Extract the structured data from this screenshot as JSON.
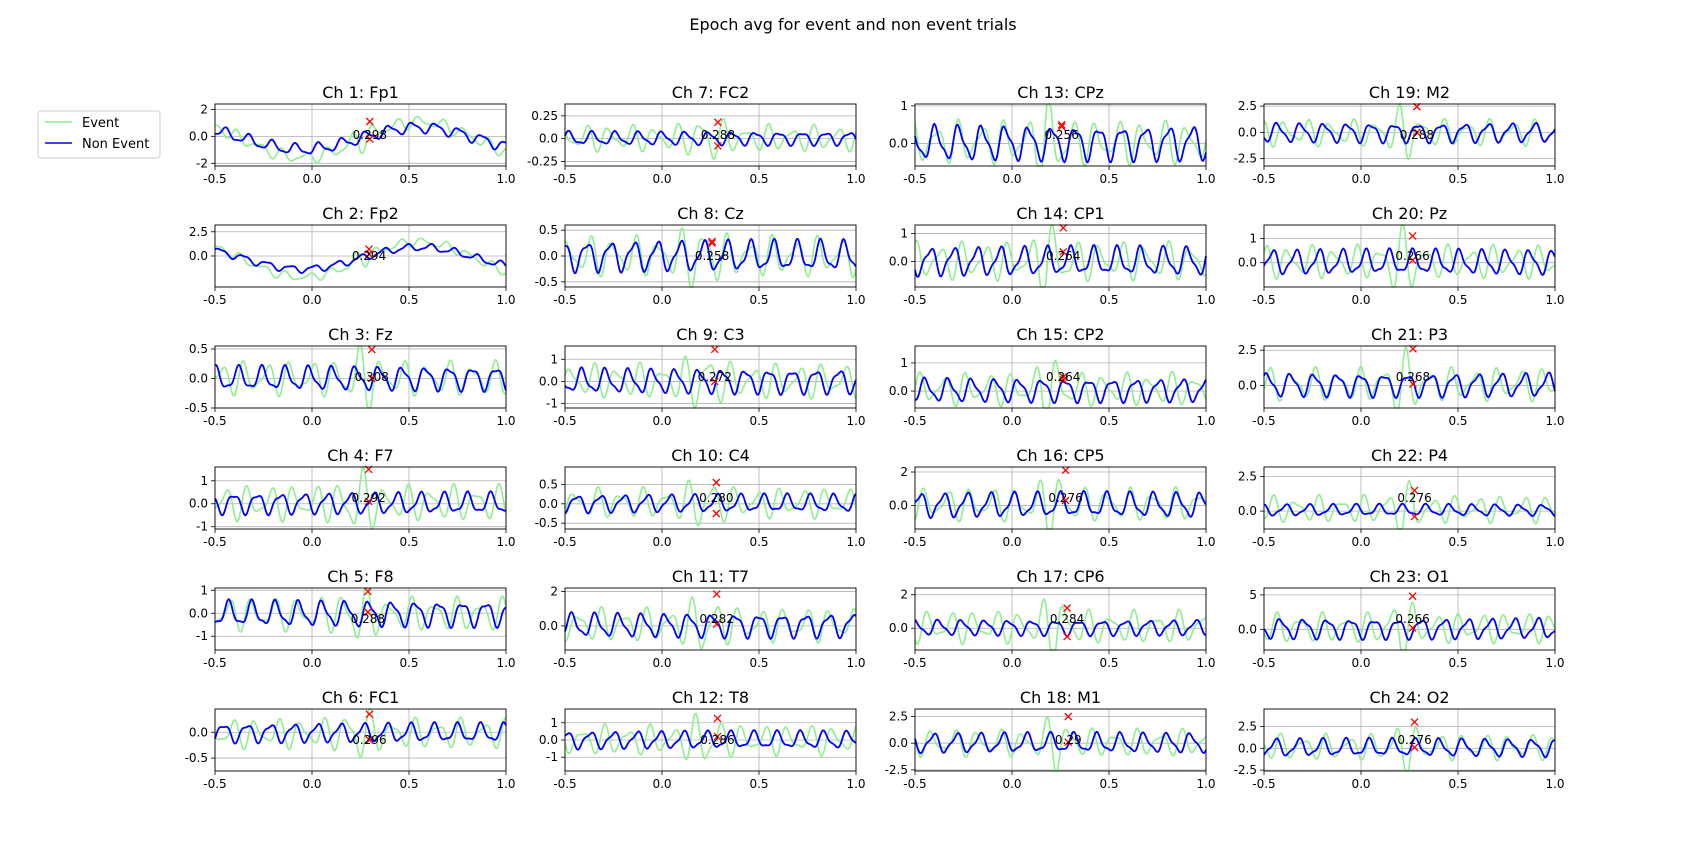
{
  "figure": {
    "suptitle": "Epoch avg for event and non event trials",
    "colors": {
      "event": "#90ee90",
      "non_event": "#0000ff",
      "marker": "#ff0000",
      "grid": "#b0b0b0"
    }
  },
  "chart_data": {
    "type": "line",
    "legend": {
      "placement": "left",
      "entries": [
        {
          "label": "Event",
          "color": "#90ee90"
        },
        {
          "label": "Non Event",
          "color": "#0000ff"
        }
      ]
    },
    "xlim": [
      -0.5,
      1.0
    ],
    "xticks": [
      -0.5,
      0.0,
      0.5,
      1.0
    ],
    "grid": true,
    "panels": [
      {
        "title": "Ch 1: Fp1",
        "ylim": [
          -2.2,
          2.4
        ],
        "yticks": [
          -2,
          0,
          2
        ],
        "event_amp": 0.5,
        "non_amp": 0.45,
        "peak_x": 0.298,
        "peak_label": "0.298",
        "marker_high": 1.1,
        "marker_low": -0.2,
        "seed": 1,
        "drift": 1
      },
      {
        "title": "Ch 2: Fp2",
        "ylim": [
          -3.2,
          3.2
        ],
        "yticks": [
          0.0,
          2.5
        ],
        "event_amp": 0.5,
        "non_amp": 0.4,
        "peak_x": 0.294,
        "peak_label": "0.294",
        "marker_high": 0.7,
        "marker_low": 0.2,
        "seed": 2,
        "drift": 1
      },
      {
        "title": "Ch 3: Fz",
        "ylim": [
          -0.5,
          0.55
        ],
        "yticks": [
          -0.5,
          0.0,
          0.5
        ],
        "event_amp": 0.3,
        "non_amp": 0.22,
        "peak_x": 0.308,
        "peak_label": "0.308",
        "marker_high": 0.49,
        "marker_low": 0.0,
        "seed": 3,
        "drift": 0
      },
      {
        "title": "Ch 4: F7",
        "ylim": [
          -1.1,
          1.6
        ],
        "yticks": [
          -1,
          0,
          1
        ],
        "event_amp": 0.8,
        "non_amp": 0.5,
        "peak_x": 0.292,
        "peak_label": "0.292",
        "marker_high": 1.5,
        "marker_low": 0.1,
        "seed": 4,
        "drift": 0
      },
      {
        "title": "Ch 5: F8",
        "ylim": [
          -1.6,
          1.1
        ],
        "yticks": [
          -1,
          0,
          1
        ],
        "event_amp": 0.75,
        "non_amp": 0.6,
        "peak_x": 0.288,
        "peak_label": "0.288",
        "marker_high": 0.95,
        "marker_low": 0.05,
        "seed": 5,
        "drift": 0
      },
      {
        "title": "Ch 6: FC1",
        "ylim": [
          -0.75,
          0.45
        ],
        "yticks": [
          -0.5,
          0.0
        ],
        "event_amp": 0.3,
        "non_amp": 0.2,
        "peak_x": 0.296,
        "peak_label": "0.296",
        "marker_high": 0.35,
        "marker_low": -0.15,
        "seed": 6,
        "drift": 0
      },
      {
        "title": "Ch 7: FC2",
        "ylim": [
          -0.3,
          0.38
        ],
        "yticks": [
          -0.25,
          0.0,
          0.25
        ],
        "event_amp": 0.15,
        "non_amp": 0.08,
        "peak_x": 0.288,
        "peak_label": "0.288",
        "marker_high": 0.18,
        "marker_low": -0.08,
        "seed": 7,
        "drift": 0
      },
      {
        "title": "Ch 8: Cz",
        "ylim": [
          -0.6,
          0.6
        ],
        "yticks": [
          -0.5,
          0.0,
          0.5
        ],
        "event_amp": 0.4,
        "non_amp": 0.32,
        "peak_x": 0.258,
        "peak_label": "0.258",
        "marker_high": 0.28,
        "marker_low": 0.25,
        "seed": 8,
        "drift": 0
      },
      {
        "title": "Ch 9: C3",
        "ylim": [
          -1.2,
          1.6
        ],
        "yticks": [
          -1,
          0,
          1
        ],
        "event_amp": 0.8,
        "non_amp": 0.6,
        "peak_x": 0.272,
        "peak_label": "0.272",
        "marker_high": 1.45,
        "marker_low": 0.0,
        "seed": 9,
        "drift": 0
      },
      {
        "title": "Ch 10: C4",
        "ylim": [
          -0.65,
          0.95
        ],
        "yticks": [
          -0.5,
          0.0,
          0.5
        ],
        "event_amp": 0.4,
        "non_amp": 0.25,
        "peak_x": 0.28,
        "peak_label": "0.280",
        "marker_high": 0.55,
        "marker_low": -0.25,
        "seed": 10,
        "drift": 0
      },
      {
        "title": "Ch 11: T7",
        "ylim": [
          -1.4,
          2.2
        ],
        "yticks": [
          0,
          2
        ],
        "event_amp": 1.0,
        "non_amp": 0.75,
        "peak_x": 0.282,
        "peak_label": "0.282",
        "marker_high": 1.85,
        "marker_low": 0.1,
        "seed": 11,
        "drift": 0
      },
      {
        "title": "Ch 12: T8",
        "ylim": [
          -1.8,
          1.8
        ],
        "yticks": [
          -1,
          0,
          1
        ],
        "event_amp": 0.9,
        "non_amp": 0.55,
        "peak_x": 0.286,
        "peak_label": "0.286",
        "marker_high": 1.25,
        "marker_low": 0.2,
        "seed": 12,
        "drift": 0
      },
      {
        "title": "Ch 13: CPz",
        "ylim": [
          -0.6,
          1.05
        ],
        "yticks": [
          0,
          1
        ],
        "event_amp": 0.6,
        "non_amp": 0.5,
        "peak_x": 0.256,
        "peak_label": "0.256",
        "marker_high": 0.5,
        "marker_low": 0.45,
        "seed": 13,
        "drift": 0
      },
      {
        "title": "Ch 14: CP1",
        "ylim": [
          -0.9,
          1.3
        ],
        "yticks": [
          0,
          1
        ],
        "event_amp": 0.7,
        "non_amp": 0.55,
        "peak_x": 0.264,
        "peak_label": "0.264",
        "marker_high": 1.2,
        "marker_low": 0.35,
        "seed": 14,
        "drift": 0
      },
      {
        "title": "Ch 15: CP2",
        "ylim": [
          -0.6,
          1.6
        ],
        "yticks": [
          0,
          1
        ],
        "event_amp": 0.6,
        "non_amp": 0.45,
        "peak_x": 0.264,
        "peak_label": "0.264",
        "marker_high": 0.5,
        "marker_low": 0.4,
        "seed": 15,
        "drift": 0
      },
      {
        "title": "Ch 16: CP5",
        "ylim": [
          -1.4,
          2.3
        ],
        "yticks": [
          0,
          2
        ],
        "event_amp": 1.0,
        "non_amp": 0.8,
        "peak_x": 0.276,
        "peak_label": "0.276",
        "marker_high": 2.1,
        "marker_low": 0.3,
        "seed": 16,
        "drift": 0
      },
      {
        "title": "Ch 17: CP6",
        "ylim": [
          -1.3,
          2.4
        ],
        "yticks": [
          0,
          2
        ],
        "event_amp": 1.0,
        "non_amp": 0.5,
        "peak_x": 0.284,
        "peak_label": "0.284",
        "marker_high": 1.2,
        "marker_low": -0.5,
        "seed": 17,
        "drift": 0
      },
      {
        "title": "Ch 18: M1",
        "ylim": [
          -2.6,
          3.2
        ],
        "yticks": [
          -2.5,
          0.0,
          2.5
        ],
        "event_amp": 1.3,
        "non_amp": 1.0,
        "peak_x": 0.29,
        "peak_label": "0.29",
        "marker_high": 2.5,
        "marker_low": 0.1,
        "seed": 18,
        "drift": 0
      },
      {
        "title": "Ch 19: M2",
        "ylim": [
          -3.2,
          2.7
        ],
        "yticks": [
          -2.5,
          0.0,
          2.5
        ],
        "event_amp": 1.3,
        "non_amp": 1.0,
        "peak_x": 0.288,
        "peak_label": "0.288",
        "marker_high": 2.45,
        "marker_low": 0.0,
        "seed": 19,
        "drift": 0
      },
      {
        "title": "Ch 20: Pz",
        "ylim": [
          -1.0,
          1.55
        ],
        "yticks": [
          0,
          1
        ],
        "event_amp": 0.7,
        "non_amp": 0.55,
        "peak_x": 0.266,
        "peak_label": "0.266",
        "marker_high": 1.1,
        "marker_low": 0.1,
        "seed": 20,
        "drift": 0
      },
      {
        "title": "Ch 21: P3",
        "ylim": [
          -1.6,
          2.8
        ],
        "yticks": [
          0.0,
          2.5
        ],
        "event_amp": 1.2,
        "non_amp": 0.9,
        "peak_x": 0.268,
        "peak_label": "0.268",
        "marker_high": 2.6,
        "marker_low": 0.1,
        "seed": 21,
        "drift": 0
      },
      {
        "title": "Ch 22: P4",
        "ylim": [
          -1.3,
          3.2
        ],
        "yticks": [
          0.0,
          2.5
        ],
        "event_amp": 1.0,
        "non_amp": 0.45,
        "peak_x": 0.276,
        "peak_label": "0.276",
        "marker_high": 1.5,
        "marker_low": -0.4,
        "seed": 22,
        "drift": 0
      },
      {
        "title": "Ch 23: O1",
        "ylim": [
          -3.0,
          6.0
        ],
        "yticks": [
          0,
          5
        ],
        "event_amp": 2.2,
        "non_amp": 1.6,
        "peak_x": 0.266,
        "peak_label": "0.266",
        "marker_high": 4.8,
        "marker_low": 0.2,
        "seed": 23,
        "drift": 0
      },
      {
        "title": "Ch 24: O2",
        "ylim": [
          -2.6,
          4.5
        ],
        "yticks": [
          -2.5,
          0.0,
          2.5
        ],
        "event_amp": 1.5,
        "non_amp": 1.1,
        "peak_x": 0.276,
        "peak_label": "0.276",
        "marker_high": 3.0,
        "marker_low": 0.1,
        "seed": 24,
        "drift": 0
      }
    ]
  }
}
